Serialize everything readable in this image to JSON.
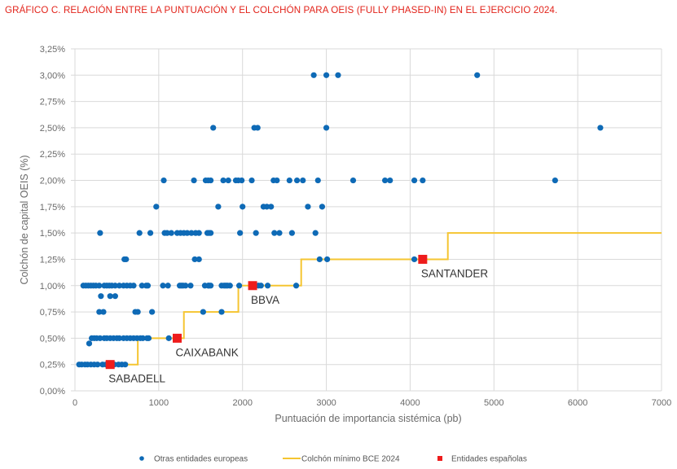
{
  "title": "GRÁFICO C. RELACIÓN ENTRE LA PUNTUACIÓN Y EL COLCHÓN PARA OEIS (FULLY PHASED-IN) EN EL EJERCICIO 2024.",
  "chart_data": {
    "type": "scatter",
    "title": "GRÁFICO C. RELACIÓN ENTRE LA PUNTUACIÓN Y EL COLCHÓN PARA OEIS (FULLY PHASED-IN) EN EL EJERCICIO 2024.",
    "xlabel": "Puntuación de importancia sistémica (pb)",
    "ylabel": "Colchón de capital OEIS (%)",
    "xlim": [
      0,
      7000
    ],
    "ylim": [
      0,
      3.25
    ],
    "x_ticks": [
      0,
      1000,
      2000,
      3000,
      4000,
      5000,
      6000,
      7000
    ],
    "x_tick_labels": [
      "0",
      "1000",
      "2000",
      "3000",
      "4000",
      "5000",
      "6000",
      "7000"
    ],
    "y_ticks": [
      0,
      0.25,
      0.5,
      0.75,
      1.0,
      1.25,
      1.5,
      1.75,
      2.0,
      2.25,
      2.5,
      2.75,
      3.0,
      3.25
    ],
    "y_tick_labels": [
      "0,00%",
      "0,25%",
      "0,50%",
      "0,75%",
      "1,00%",
      "1,25%",
      "1,50%",
      "1,75%",
      "2,00%",
      "2,25%",
      "2,50%",
      "2,75%",
      "3,00%",
      "3,25%"
    ],
    "grid": true,
    "legend_position": "bottom",
    "colors": {
      "others": "#0e6ab6",
      "step": "#f5c531",
      "spanish": "#ee1c1c",
      "grid": "#d9d9d9"
    },
    "series": [
      {
        "name": "Otras entidades europeas",
        "kind": "scatter",
        "points": [
          [
            50,
            0.25
          ],
          [
            80,
            0.25
          ],
          [
            120,
            0.25
          ],
          [
            150,
            0.25
          ],
          [
            190,
            0.25
          ],
          [
            230,
            0.25
          ],
          [
            270,
            0.25
          ],
          [
            330,
            0.25
          ],
          [
            370,
            0.25
          ],
          [
            470,
            0.25
          ],
          [
            520,
            0.25
          ],
          [
            560,
            0.25
          ],
          [
            600,
            0.25
          ],
          [
            170,
            0.45
          ],
          [
            200,
            0.5
          ],
          [
            230,
            0.5
          ],
          [
            260,
            0.5
          ],
          [
            300,
            0.5
          ],
          [
            350,
            0.5
          ],
          [
            380,
            0.5
          ],
          [
            420,
            0.5
          ],
          [
            460,
            0.5
          ],
          [
            500,
            0.5
          ],
          [
            530,
            0.5
          ],
          [
            580,
            0.5
          ],
          [
            620,
            0.5
          ],
          [
            660,
            0.5
          ],
          [
            700,
            0.5
          ],
          [
            740,
            0.5
          ],
          [
            780,
            0.5
          ],
          [
            810,
            0.5
          ],
          [
            860,
            0.5
          ],
          [
            880,
            0.5
          ],
          [
            1120,
            0.5
          ],
          [
            290,
            0.75
          ],
          [
            340,
            0.75
          ],
          [
            720,
            0.75
          ],
          [
            750,
            0.75
          ],
          [
            920,
            0.75
          ],
          [
            1530,
            0.75
          ],
          [
            1750,
            0.75
          ],
          [
            310,
            0.9
          ],
          [
            420,
            0.9
          ],
          [
            480,
            0.9
          ],
          [
            100,
            1.0
          ],
          [
            130,
            1.0
          ],
          [
            160,
            1.0
          ],
          [
            190,
            1.0
          ],
          [
            220,
            1.0
          ],
          [
            250,
            1.0
          ],
          [
            290,
            1.0
          ],
          [
            350,
            1.0
          ],
          [
            380,
            1.0
          ],
          [
            410,
            1.0
          ],
          [
            440,
            1.0
          ],
          [
            480,
            1.0
          ],
          [
            530,
            1.0
          ],
          [
            580,
            1.0
          ],
          [
            620,
            1.0
          ],
          [
            660,
            1.0
          ],
          [
            700,
            1.0
          ],
          [
            800,
            1.0
          ],
          [
            850,
            1.0
          ],
          [
            870,
            1.0
          ],
          [
            1050,
            1.0
          ],
          [
            1110,
            1.0
          ],
          [
            1250,
            1.0
          ],
          [
            1270,
            1.0
          ],
          [
            1290,
            1.0
          ],
          [
            1320,
            1.0
          ],
          [
            1380,
            1.0
          ],
          [
            1550,
            1.0
          ],
          [
            1590,
            1.0
          ],
          [
            1600,
            1.0
          ],
          [
            1620,
            1.0
          ],
          [
            1750,
            1.0
          ],
          [
            1780,
            1.0
          ],
          [
            1800,
            1.0
          ],
          [
            1820,
            1.0
          ],
          [
            1850,
            1.0
          ],
          [
            1960,
            1.0
          ],
          [
            2190,
            1.0
          ],
          [
            2220,
            1.0
          ],
          [
            2300,
            1.0
          ],
          [
            2640,
            1.0
          ],
          [
            590,
            1.25
          ],
          [
            610,
            1.25
          ],
          [
            1430,
            1.25
          ],
          [
            1480,
            1.25
          ],
          [
            2920,
            1.25
          ],
          [
            3010,
            1.25
          ],
          [
            4050,
            1.25
          ],
          [
            300,
            1.5
          ],
          [
            770,
            1.5
          ],
          [
            900,
            1.5
          ],
          [
            1070,
            1.5
          ],
          [
            1100,
            1.5
          ],
          [
            1150,
            1.5
          ],
          [
            1220,
            1.5
          ],
          [
            1260,
            1.5
          ],
          [
            1300,
            1.5
          ],
          [
            1340,
            1.5
          ],
          [
            1390,
            1.5
          ],
          [
            1440,
            1.5
          ],
          [
            1480,
            1.5
          ],
          [
            1580,
            1.5
          ],
          [
            1600,
            1.5
          ],
          [
            1620,
            1.5
          ],
          [
            1970,
            1.5
          ],
          [
            2160,
            1.5
          ],
          [
            2380,
            1.5
          ],
          [
            2440,
            1.5
          ],
          [
            2590,
            1.5
          ],
          [
            2870,
            1.5
          ],
          [
            970,
            1.75
          ],
          [
            1710,
            1.75
          ],
          [
            2000,
            1.75
          ],
          [
            2250,
            1.75
          ],
          [
            2290,
            1.75
          ],
          [
            2340,
            1.75
          ],
          [
            2780,
            1.75
          ],
          [
            2950,
            1.75
          ],
          [
            1060,
            2.0
          ],
          [
            1420,
            2.0
          ],
          [
            1560,
            2.0
          ],
          [
            1590,
            2.0
          ],
          [
            1620,
            2.0
          ],
          [
            1770,
            2.0
          ],
          [
            1830,
            2.0
          ],
          [
            1920,
            2.0
          ],
          [
            1950,
            2.0
          ],
          [
            1990,
            2.0
          ],
          [
            2110,
            2.0
          ],
          [
            2370,
            2.0
          ],
          [
            2410,
            2.0
          ],
          [
            2560,
            2.0
          ],
          [
            2650,
            2.0
          ],
          [
            2720,
            2.0
          ],
          [
            2900,
            2.0
          ],
          [
            3320,
            2.0
          ],
          [
            3700,
            2.0
          ],
          [
            3760,
            2.0
          ],
          [
            4050,
            2.0
          ],
          [
            4150,
            2.0
          ],
          [
            5730,
            2.0
          ],
          [
            1650,
            2.5
          ],
          [
            2140,
            2.5
          ],
          [
            2180,
            2.5
          ],
          [
            3000,
            2.5
          ],
          [
            6270,
            2.5
          ],
          [
            2850,
            3.0
          ],
          [
            3000,
            3.0
          ],
          [
            3140,
            3.0
          ],
          [
            4800,
            3.0
          ]
        ]
      },
      {
        "name": "Colchón mínimo BCE 2024",
        "kind": "step-line",
        "points": [
          [
            300,
            0.25
          ],
          [
            750,
            0.25
          ],
          [
            750,
            0.5
          ],
          [
            1300,
            0.5
          ],
          [
            1300,
            0.75
          ],
          [
            1950,
            0.75
          ],
          [
            1950,
            1.0
          ],
          [
            2700,
            1.0
          ],
          [
            2700,
            1.25
          ],
          [
            4450,
            1.25
          ],
          [
            4450,
            1.5
          ],
          [
            7000,
            1.5
          ]
        ]
      },
      {
        "name": "Entidades españolas",
        "kind": "scatter-square",
        "points": [
          {
            "label": "SABADELL",
            "x": 420,
            "y": 0.25
          },
          {
            "label": "CAIXABANK",
            "x": 1220,
            "y": 0.5
          },
          {
            "label": "BBVA",
            "x": 2120,
            "y": 1.0
          },
          {
            "label": "SANTANDER",
            "x": 4150,
            "y": 1.25
          }
        ]
      }
    ],
    "legend": [
      {
        "label": "Otras entidades europeas",
        "marker": "dot"
      },
      {
        "label": "Colchón mínimo BCE 2024",
        "marker": "line"
      },
      {
        "label": "Entidades españolas",
        "marker": "square"
      }
    ]
  }
}
